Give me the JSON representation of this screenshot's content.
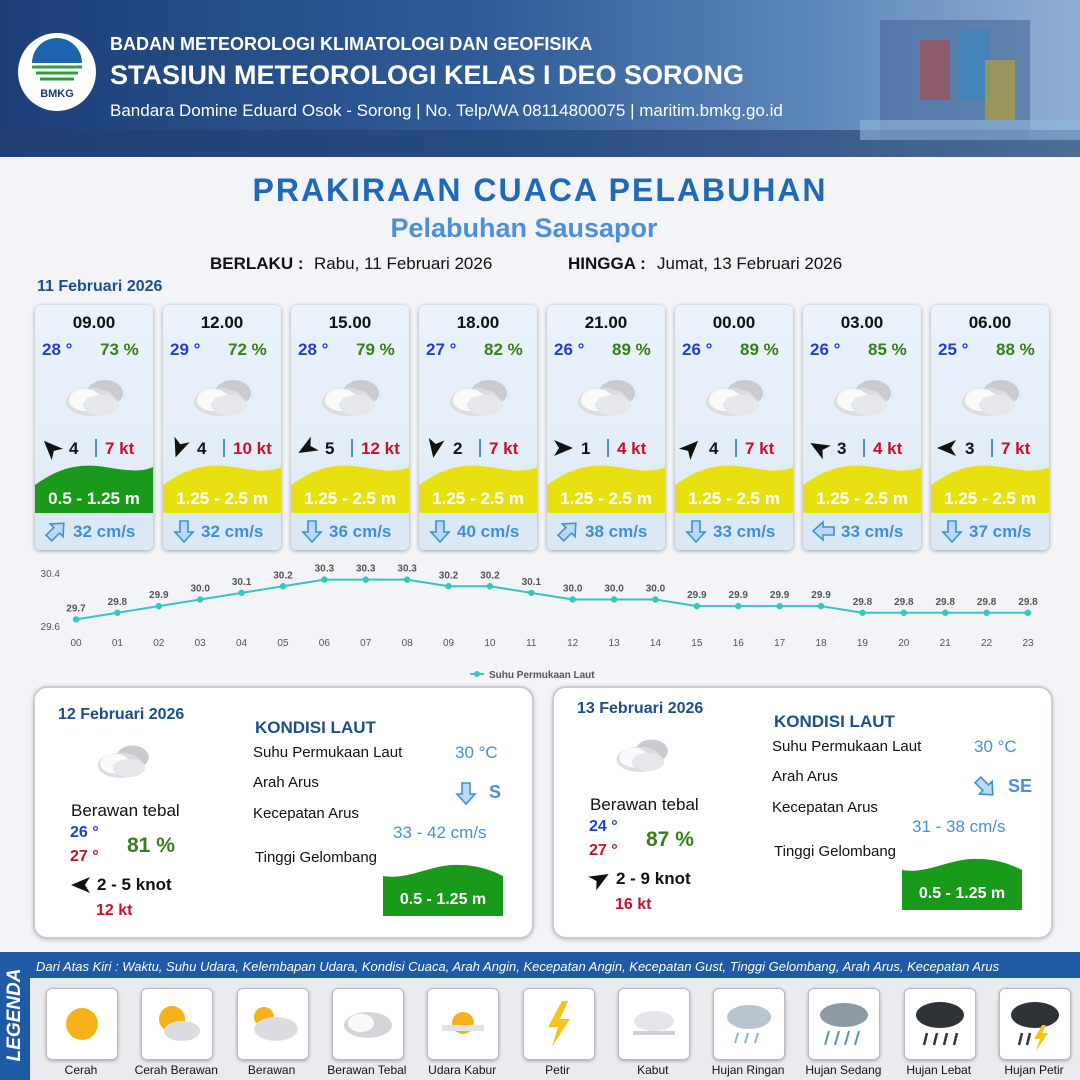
{
  "header": {
    "logo_text": "BMKG",
    "agency": "BADAN METEOROLOGI KLIMATOLOGI DAN GEOFISIKA",
    "station": "STASIUN METEOROLOGI KELAS I DEO SORONG",
    "contact": "Bandara Domine Eduard Osok - Sorong | No. Telp/WA 08114800075 | maritim.bmkg.go.id"
  },
  "title": "PRAKIRAAN CUACA PELABUHAN",
  "subtitle": "Pelabuhan Sausapor",
  "validity": {
    "from_label": "BERLAKU :",
    "from": "Rabu, 11 Februari 2026",
    "to_label": "HINGGA :",
    "to": "Jumat, 13 Februari 2026"
  },
  "day1": {
    "date": "11 Februari 2026",
    "forecasts": [
      {
        "time": "09.00",
        "temp": "28 °",
        "humidity": "73 %",
        "wind_deg": -45,
        "wind": "4",
        "gust": "7 kt",
        "wave": "0.5 - 1.25 m",
        "wave_color": "#1a9a1a",
        "current_deg": 45,
        "current": "32 cm/s"
      },
      {
        "time": "12.00",
        "temp": "29 °",
        "humidity": "72 %",
        "wind_deg": 200,
        "wind": "4",
        "gust": "10 kt",
        "wave": "1.25 - 2.5 m",
        "wave_color": "#e8e010",
        "current_deg": 180,
        "current": "32 cm/s"
      },
      {
        "time": "15.00",
        "temp": "28 °",
        "humidity": "79 %",
        "wind_deg": 240,
        "wind": "5",
        "gust": "12 kt",
        "wave": "1.25 - 2.5 m",
        "wave_color": "#e8e010",
        "current_deg": 180,
        "current": "36 cm/s"
      },
      {
        "time": "18.00",
        "temp": "27 °",
        "humidity": "82 %",
        "wind_deg": 190,
        "wind": "2",
        "gust": "7 kt",
        "wave": "1.25 - 2.5 m",
        "wave_color": "#e8e010",
        "current_deg": 180,
        "current": "40 cm/s"
      },
      {
        "time": "21.00",
        "temp": "26 °",
        "humidity": "89 %",
        "wind_deg": 90,
        "wind": "1",
        "gust": "4 kt",
        "wave": "1.25 - 2.5 m",
        "wave_color": "#e8e010",
        "current_deg": 45,
        "current": "38 cm/s"
      },
      {
        "time": "00.00",
        "temp": "26 °",
        "humidity": "89 %",
        "wind_deg": 45,
        "wind": "4",
        "gust": "7 kt",
        "wave": "1.25 - 2.5 m",
        "wave_color": "#e8e010",
        "current_deg": 180,
        "current": "33 cm/s"
      },
      {
        "time": "03.00",
        "temp": "26 °",
        "humidity": "85 %",
        "wind_deg": -60,
        "wind": "3",
        "gust": "4 kt",
        "wave": "1.25 - 2.5 m",
        "wave_color": "#e8e010",
        "current_deg": 270,
        "current": "33 cm/s"
      },
      {
        "time": "06.00",
        "temp": "25 °",
        "humidity": "88 %",
        "wind_deg": 270,
        "wind": "3",
        "gust": "7 kt",
        "wave": "1.25 - 2.5 m",
        "wave_color": "#e8e010",
        "current_deg": 180,
        "current": "37 cm/s"
      }
    ]
  },
  "chart_data": {
    "type": "line",
    "categories": [
      "00",
      "01",
      "02",
      "03",
      "04",
      "05",
      "06",
      "07",
      "08",
      "09",
      "10",
      "11",
      "12",
      "13",
      "14",
      "15",
      "16",
      "17",
      "18",
      "19",
      "20",
      "21",
      "22",
      "23"
    ],
    "series": [
      {
        "name": "Suhu Permukaan Laut",
        "color": "#35c6c0",
        "values": [
          29.7,
          29.8,
          29.9,
          30.0,
          30.1,
          30.2,
          30.3,
          30.3,
          30.3,
          30.2,
          30.2,
          30.1,
          30.0,
          30.0,
          30.0,
          29.9,
          29.9,
          29.9,
          29.9,
          29.8,
          29.8,
          29.8,
          29.8,
          29.8
        ],
        "value_labels": [
          "29.7",
          "29.8",
          "29.9",
          "30.0",
          "30.1",
          "30.2",
          "30.3",
          "30.3",
          "30.3",
          "30.2",
          "30.2",
          "30.1",
          "30.0",
          "30.0",
          "30.0",
          "29.9",
          "29.9",
          "29.9",
          "29.9",
          "29.8",
          "29.8",
          "29.8",
          "29.8",
          "29.8"
        ]
      }
    ],
    "ylim": [
      29.6,
      30.4
    ],
    "yticks": [
      29.6,
      30.4
    ],
    "grid": false,
    "legend": "bottom"
  },
  "days": [
    {
      "date": "12 Februari 2026",
      "condition": "Berawan tebal",
      "temp_min": "26 °",
      "temp_max": "27 °",
      "humidity": "81 %",
      "wind_deg": 270,
      "wind": "2  - 5 knot",
      "gust": "12 kt",
      "sea": {
        "title": "KONDISI LAUT",
        "sst_label": "Suhu Permukaan Laut",
        "sst": "30 °C",
        "dir_label": "Arah Arus",
        "dir_deg": 180,
        "dir": "S",
        "speed_label": "Kecepatan Arus",
        "speed": "33 - 42 cm/s",
        "wave_label": "Tinggi Gelombang",
        "wave": "0.5 - 1.25 m",
        "wave_color": "#1a9a1a"
      }
    },
    {
      "date": "13 Februari 2026",
      "condition": "Berawan tebal",
      "temp_min": "24 °",
      "temp_max": "27 °",
      "humidity": "87 %",
      "wind_deg": 60,
      "wind": "2  - 9 knot",
      "gust": "16 kt",
      "sea": {
        "title": "KONDISI LAUT",
        "sst_label": "Suhu Permukaan Laut",
        "sst": "30 °C",
        "dir_label": "Arah Arus",
        "dir_deg": 135,
        "dir": "SE",
        "speed_label": "Kecepatan Arus",
        "speed": "31 - 38 cm/s",
        "wave_label": "Tinggi Gelombang",
        "wave": "0.5 - 1.25 m",
        "wave_color": "#1a9a1a"
      }
    }
  ],
  "legend": {
    "title": "LEGENDA",
    "description": "Dari Atas Kiri : Waktu, Suhu Udara, Kelembapan Udara, Kondisi Cuaca, Arah Angin, Kecepatan Angin, Kecepatan Gust, Tinggi Gelombang, Arah Arus, Kecepatan Arus",
    "items": [
      "Cerah",
      "Cerah Berawan",
      "Berawan",
      "Berawan Tebal",
      "Udara Kabur",
      "Petir",
      "Kabut",
      "Hujan Ringan",
      "Hujan Sedang",
      "Hujan Lebat",
      "Hujan Petir"
    ]
  }
}
